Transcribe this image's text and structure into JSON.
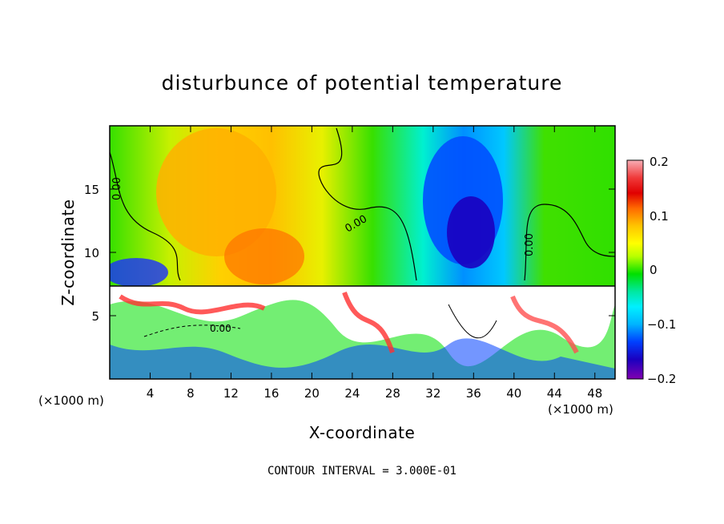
{
  "chart_data": {
    "type": "heatmap",
    "title": "disturbunce of potential temperature",
    "xlabel": "X-coordinate",
    "ylabel": "Z-coordinate",
    "x_unit": "(×1000 m)",
    "x_unit_right": "(×1000 m)",
    "xlim": [
      0,
      50
    ],
    "ylim": [
      0,
      20
    ],
    "x_ticks": [
      "4",
      "8",
      "12",
      "16",
      "20",
      "24",
      "28",
      "32",
      "36",
      "40",
      "44",
      "48"
    ],
    "y_ticks": [
      "5",
      "10",
      "15"
    ],
    "contour_labels": [
      "0.00",
      "0.00",
      "0.00",
      "0.00"
    ],
    "footer": "CONTOUR INTERVAL = 3.000E-01",
    "colorbar": {
      "min": -0.2,
      "max": 0.2,
      "tick_labels": [
        "0.2",
        "0.1",
        "0",
        "−0.1",
        "−0.2"
      ],
      "colors": [
        "#f7aeb6",
        "#f03a3a",
        "#e00000",
        "#ff6a00",
        "#ff9a00",
        "#ffc400",
        "#ffff00",
        "#b8ff00",
        "#58ef00",
        "#00e000",
        "#00e8a0",
        "#00f0ff",
        "#00b4ff",
        "#0070ff",
        "#0014ff",
        "#1a00c0",
        "#7a00b0"
      ]
    }
  }
}
